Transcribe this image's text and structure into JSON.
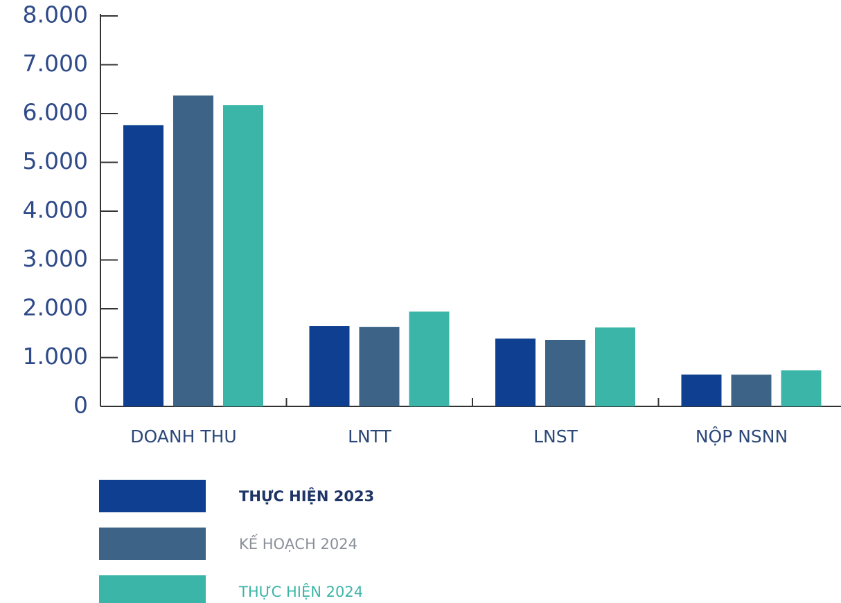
{
  "chart_data": {
    "type": "bar",
    "categories": [
      "DOANH THU",
      "LNTT",
      "LNST",
      "NỘP NSNN"
    ],
    "series": [
      {
        "name": "THỰC HIỆN 2023",
        "color": "#0e3f90",
        "values": [
          5760,
          1645,
          1390,
          652
        ]
      },
      {
        "name": "KẾ HOẠCH 2024",
        "color": "#3d6386",
        "values": [
          6370,
          1630,
          1362,
          650
        ]
      },
      {
        "name": "THỰC HIỆN 2024",
        "color": "#3bb5a8",
        "values": [
          6170,
          1943,
          1617,
          738
        ]
      }
    ],
    "ylim": [
      0,
      8000
    ],
    "yticks": [
      0,
      {
        "value": 1000,
        "label": "1.000"
      },
      {
        "value": 2000,
        "label": "2.000"
      },
      {
        "value": 3000,
        "label": "3.000"
      },
      {
        "value": 4000,
        "label": "4.000"
      },
      {
        "value": 5000,
        "label": "5.000"
      },
      {
        "value": 6000,
        "label": "6.000"
      },
      {
        "value": 7000,
        "label": "7.000"
      },
      {
        "value": 8000,
        "label": "8.000"
      }
    ],
    "grid": false,
    "legend": "bottom"
  }
}
